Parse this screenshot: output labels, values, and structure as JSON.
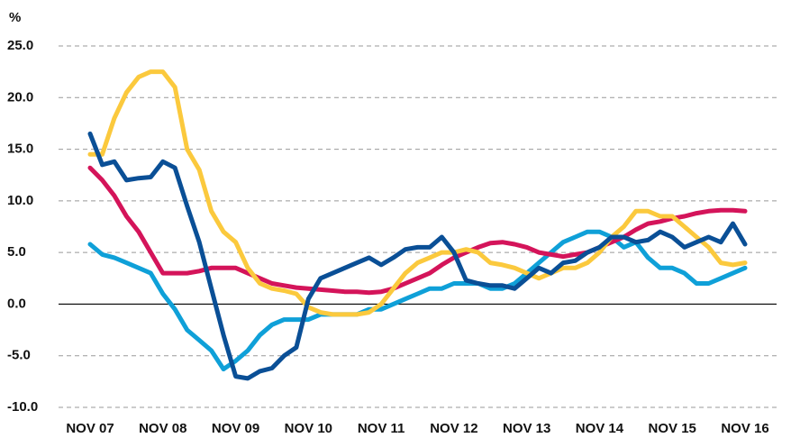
{
  "chart_data": {
    "type": "line",
    "y_label": "%",
    "categories": [
      "NOV 07",
      null,
      null,
      null,
      null,
      null,
      "NOV 08",
      null,
      null,
      null,
      null,
      null,
      "NOV 09",
      null,
      null,
      null,
      null,
      null,
      "NOV 10",
      null,
      null,
      null,
      null,
      null,
      "NOV 11",
      null,
      null,
      null,
      null,
      null,
      "NOV 12",
      null,
      null,
      null,
      null,
      null,
      "NOV 13",
      null,
      null,
      null,
      null,
      null,
      "NOV 14",
      null,
      null,
      null,
      null,
      null,
      "NOV 15",
      null,
      null,
      null,
      null,
      null,
      "NOV 16"
    ],
    "series": [
      {
        "color": "#0fa0d8",
        "values": [
          5.8,
          4.8,
          4.5,
          4.0,
          3.5,
          3.0,
          1.0,
          -0.5,
          -2.5,
          -3.5,
          -4.5,
          -6.3,
          -5.5,
          -4.5,
          -3.0,
          -2.0,
          -1.5,
          -1.5,
          -1.5,
          -1.0,
          -1.0,
          -1.0,
          -1.0,
          -0.5,
          -0.5,
          0.0,
          0.5,
          1.0,
          1.5,
          1.5,
          2.0,
          2.0,
          2.0,
          1.5,
          1.5,
          2.0,
          3.0,
          4.0,
          5.0,
          6.0,
          6.5,
          7.0,
          7.0,
          6.5,
          5.5,
          6.0,
          4.5,
          3.5,
          3.5,
          3.0,
          2.0,
          2.0,
          2.5,
          3.0,
          3.5
        ]
      },
      {
        "color": "#d4145a",
        "values": [
          13.2,
          12.0,
          10.5,
          8.5,
          7.0,
          5.0,
          3.0,
          3.0,
          3.0,
          3.2,
          3.5,
          3.5,
          3.5,
          3.0,
          2.5,
          2.0,
          1.8,
          1.6,
          1.5,
          1.4,
          1.3,
          1.2,
          1.2,
          1.1,
          1.2,
          1.5,
          2.0,
          2.5,
          3.0,
          3.8,
          4.5,
          5.0,
          5.5,
          5.9,
          6.0,
          5.8,
          5.5,
          5.0,
          4.8,
          4.6,
          4.8,
          5.0,
          5.5,
          6.0,
          6.5,
          7.2,
          7.8,
          8.0,
          8.3,
          8.5,
          8.8,
          9.0,
          9.1,
          9.1,
          9.0
        ]
      },
      {
        "color": "#fbc93d",
        "values": [
          14.5,
          14.5,
          18.0,
          20.5,
          22.0,
          22.5,
          22.5,
          21.0,
          15.0,
          13.0,
          9.0,
          7.0,
          6.0,
          3.5,
          2.0,
          1.5,
          1.3,
          1.0,
          -0.3,
          -0.8,
          -1.0,
          -1.0,
          -1.0,
          -0.8,
          0.0,
          1.5,
          3.0,
          4.0,
          4.5,
          5.0,
          5.0,
          5.3,
          5.0,
          4.0,
          3.8,
          3.5,
          3.0,
          2.5,
          3.0,
          3.5,
          3.5,
          4.0,
          5.0,
          6.5,
          7.5,
          9.0,
          9.0,
          8.5,
          8.5,
          7.5,
          6.5,
          5.5,
          4.0,
          3.8,
          4.0
        ]
      },
      {
        "color": "#0a4f96",
        "values": [
          16.5,
          13.5,
          13.8,
          12.0,
          12.2,
          12.3,
          13.8,
          13.2,
          9.5,
          6.0,
          1.5,
          -3.0,
          -7.0,
          -7.2,
          -6.5,
          -6.2,
          -5.0,
          -4.2,
          0.5,
          2.5,
          3.0,
          3.5,
          4.0,
          4.5,
          3.8,
          4.5,
          5.3,
          5.5,
          5.5,
          6.5,
          5.0,
          2.3,
          2.0,
          1.8,
          1.8,
          1.5,
          2.5,
          3.5,
          3.0,
          4.0,
          4.2,
          5.0,
          5.5,
          6.5,
          6.5,
          6.0,
          6.2,
          7.0,
          6.5,
          5.5,
          6.0,
          6.5,
          6.0,
          7.8,
          5.8
        ]
      }
    ],
    "ylim": [
      -10,
      25
    ],
    "yticks": [
      {
        "value": -10,
        "label": "-10.0"
      },
      {
        "value": -5,
        "label": "-5.0"
      },
      {
        "value": 0,
        "label": "0.0"
      },
      {
        "value": 5,
        "label": "5.0"
      },
      {
        "value": 10,
        "label": "10.0"
      },
      {
        "value": 15,
        "label": "15.0"
      },
      {
        "value": 20,
        "label": "20.0"
      },
      {
        "value": 25,
        "label": "25.0"
      }
    ],
    "grid": true
  }
}
